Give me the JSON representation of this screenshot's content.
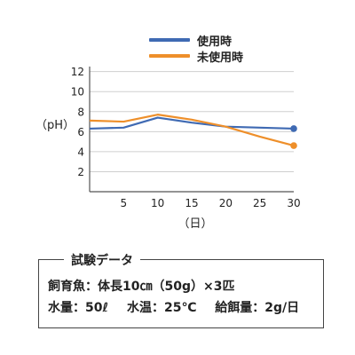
{
  "chart_data": {
    "type": "line",
    "ylabel": "（pH）",
    "xlabel": "（日）",
    "xlim": [
      0,
      30
    ],
    "ylim": [
      0,
      12.5
    ],
    "x_ticks": [
      "5",
      "10",
      "15",
      "20",
      "25",
      "30"
    ],
    "y_ticks": [
      "2",
      "4",
      "6",
      "8",
      "10",
      "12"
    ],
    "grid": true,
    "legend_position": "top",
    "series": [
      {
        "name": "使用時",
        "color": "#3f6ab3",
        "x": [
          0,
          5,
          10,
          15,
          20,
          25,
          30
        ],
        "y": [
          6.3,
          6.4,
          7.4,
          6.9,
          6.5,
          6.4,
          6.3
        ]
      },
      {
        "name": "未使用時",
        "color": "#ee8f2a",
        "x": [
          0,
          5,
          10,
          15,
          20,
          25,
          30
        ],
        "y": [
          7.1,
          7.0,
          7.7,
          7.2,
          6.5,
          5.5,
          4.6
        ]
      }
    ]
  },
  "test_data": {
    "title": "試験データ",
    "line1": "飼育魚：体長10㎝（50g）×3匹",
    "items": [
      "水量：50ℓ",
      "水温：25℃",
      "給餌量：2g/日"
    ]
  }
}
